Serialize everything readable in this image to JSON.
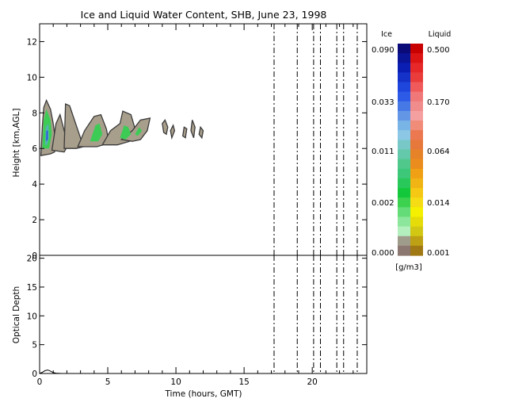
{
  "title": "Ice and Liquid Water Content, SHB, June 23, 1998",
  "colors": {
    "background": "#ffffff",
    "axis": "#000000",
    "cloud_gray": "#a89e8c",
    "cloud_outline": "#3a3a3a",
    "cloud_green": "#3ccc55",
    "cloud_teal": "#52b4b0",
    "cloud_blue": "#2a50e0"
  },
  "chart_data": [
    {
      "type": "heatmap",
      "panel": "top",
      "ylabel": "Height [km,AGL]",
      "xlim": [
        0,
        24
      ],
      "ylim": [
        0,
        13
      ],
      "yticks": [
        "0",
        "2",
        "4",
        "6",
        "8",
        "10",
        "12"
      ],
      "ytick_values": [
        0,
        2,
        4,
        6,
        8,
        10,
        12
      ],
      "dashed_time_lines": [
        17.2,
        18.9,
        20.1,
        20.6,
        21.8,
        22.3,
        23.3
      ],
      "cloud_regions": [
        {
          "kind": "body",
          "points": [
            [
              0.1,
              5.6
            ],
            [
              0.2,
              7.2
            ],
            [
              0.3,
              8.3
            ],
            [
              0.5,
              8.7
            ],
            [
              0.8,
              8.2
            ],
            [
              1.0,
              7.4
            ],
            [
              1.2,
              6.2
            ],
            [
              1.1,
              5.8
            ],
            [
              0.8,
              5.7
            ]
          ]
        },
        {
          "kind": "body",
          "points": [
            [
              0.9,
              5.9
            ],
            [
              1.2,
              7.4
            ],
            [
              1.5,
              7.9
            ],
            [
              1.8,
              7.0
            ],
            [
              2.1,
              6.2
            ],
            [
              1.8,
              5.8
            ]
          ]
        },
        {
          "kind": "body",
          "points": [
            [
              1.8,
              6.0
            ],
            [
              1.9,
              8.5
            ],
            [
              2.2,
              8.4
            ],
            [
              2.6,
              7.5
            ],
            [
              3.0,
              6.6
            ],
            [
              3.2,
              6.1
            ],
            [
              2.7,
              6.0
            ]
          ]
        },
        {
          "kind": "body",
          "points": [
            [
              2.8,
              6.1
            ],
            [
              3.3,
              7.0
            ],
            [
              4.0,
              7.8
            ],
            [
              4.5,
              7.9
            ],
            [
              4.9,
              7.1
            ],
            [
              5.1,
              6.3
            ],
            [
              4.2,
              6.1
            ]
          ]
        },
        {
          "kind": "body",
          "points": [
            [
              4.6,
              6.2
            ],
            [
              5.2,
              7.0
            ],
            [
              5.9,
              7.4
            ],
            [
              6.1,
              8.1
            ],
            [
              6.7,
              7.9
            ],
            [
              7.0,
              7.1
            ],
            [
              6.6,
              6.4
            ],
            [
              5.7,
              6.2
            ]
          ]
        },
        {
          "kind": "body",
          "points": [
            [
              6.0,
              6.5
            ],
            [
              6.8,
              7.0
            ],
            [
              7.4,
              7.6
            ],
            [
              8.1,
              7.7
            ],
            [
              7.9,
              7.0
            ],
            [
              7.4,
              6.5
            ],
            [
              6.8,
              6.4
            ]
          ]
        },
        {
          "kind": "core",
          "fill": "cloud_green",
          "points": [
            [
              0.2,
              6.0
            ],
            [
              0.3,
              7.6
            ],
            [
              0.5,
              8.2
            ],
            [
              0.8,
              7.6
            ],
            [
              0.9,
              6.8
            ],
            [
              0.7,
              6.0
            ]
          ]
        },
        {
          "kind": "core",
          "fill": "cloud_teal",
          "points": [
            [
              0.4,
              6.2
            ],
            [
              0.45,
              7.2
            ],
            [
              0.65,
              7.4
            ],
            [
              0.7,
              6.6
            ],
            [
              0.55,
              6.2
            ]
          ]
        },
        {
          "kind": "core",
          "fill": "cloud_blue",
          "points": [
            [
              0.48,
              6.4
            ],
            [
              0.5,
              7.0
            ],
            [
              0.6,
              7.0
            ],
            [
              0.6,
              6.5
            ]
          ]
        },
        {
          "kind": "core",
          "fill": "cloud_green",
          "points": [
            [
              3.7,
              6.4
            ],
            [
              4.1,
              7.3
            ],
            [
              4.4,
              7.4
            ],
            [
              4.6,
              6.8
            ],
            [
              4.3,
              6.4
            ]
          ]
        },
        {
          "kind": "core",
          "fill": "cloud_green",
          "points": [
            [
              5.9,
              6.6
            ],
            [
              6.2,
              7.3
            ],
            [
              6.5,
              7.2
            ],
            [
              6.7,
              6.8
            ],
            [
              6.3,
              6.5
            ]
          ]
        },
        {
          "kind": "core",
          "fill": "cloud_green",
          "points": [
            [
              7.0,
              6.8
            ],
            [
              7.3,
              7.2
            ],
            [
              7.5,
              7.0
            ],
            [
              7.2,
              6.7
            ]
          ]
        },
        {
          "kind": "body",
          "points": [
            [
              9.0,
              7.4
            ],
            [
              9.2,
              7.6
            ],
            [
              9.4,
              7.2
            ],
            [
              9.3,
              6.8
            ],
            [
              9.1,
              6.9
            ]
          ]
        },
        {
          "kind": "body",
          "points": [
            [
              9.6,
              7.0
            ],
            [
              9.8,
              7.3
            ],
            [
              9.9,
              7.0
            ],
            [
              9.7,
              6.6
            ]
          ]
        },
        {
          "kind": "body",
          "points": [
            [
              10.5,
              6.7
            ],
            [
              10.6,
              7.2
            ],
            [
              10.8,
              7.1
            ],
            [
              10.7,
              6.6
            ]
          ]
        },
        {
          "kind": "body",
          "points": [
            [
              11.1,
              7.0
            ],
            [
              11.2,
              7.6
            ],
            [
              11.4,
              7.2
            ],
            [
              11.3,
              6.6
            ]
          ]
        },
        {
          "kind": "body",
          "points": [
            [
              11.7,
              6.8
            ],
            [
              11.8,
              7.2
            ],
            [
              12.0,
              7.0
            ],
            [
              11.9,
              6.6
            ]
          ]
        }
      ]
    },
    {
      "type": "line",
      "panel": "bottom",
      "xlabel": "Time (hours, GMT)",
      "ylabel": "Optical Depth",
      "xlim": [
        0,
        24
      ],
      "ylim": [
        0,
        20.5
      ],
      "xticks": [
        "0",
        "5",
        "10",
        "15",
        "20"
      ],
      "xtick_values": [
        0,
        5,
        10,
        15,
        20
      ],
      "yticks": [
        "0",
        "5",
        "10",
        "15",
        "20"
      ],
      "ytick_values": [
        0,
        5,
        10,
        15,
        20
      ],
      "dashed_time_lines": [
        17.2,
        18.9,
        20.1,
        20.6,
        21.8,
        22.3,
        23.3
      ],
      "series": [
        {
          "x": [
            0,
            0.2,
            0.4,
            0.6,
            0.8,
            1.0,
            1.2,
            1.6,
            2.0,
            24
          ],
          "y": [
            0,
            0.2,
            0.5,
            0.6,
            0.4,
            0.15,
            0.05,
            0,
            0,
            0
          ]
        }
      ]
    },
    {
      "type": "table",
      "panel": "legend",
      "headers": [
        "Ice",
        "Liquid"
      ],
      "ice_labels": [
        "0.090",
        "0.033",
        "0.011",
        "0.002",
        "0.000"
      ],
      "liquid_labels": [
        "0.500",
        "0.170",
        "0.064",
        "0.014",
        "0.001"
      ],
      "units": "[g/m3]",
      "ice_colors": [
        "#0a0a78",
        "#0a1496",
        "#0a1eb4",
        "#1432c8",
        "#1e46dc",
        "#2d5ae6",
        "#4678e6",
        "#6496e6",
        "#78b4e6",
        "#8cc8e6",
        "#78c8c8",
        "#64c8aa",
        "#50c88c",
        "#3cc878",
        "#28c85a",
        "#14c83c",
        "#3cd250",
        "#64dc78",
        "#8ce69b",
        "#b4f0be",
        "#a09c8c",
        "#8c7870"
      ],
      "liquid_colors": [
        "#c80000",
        "#dc1414",
        "#e62828",
        "#eb3c3c",
        "#f05a5a",
        "#f07878",
        "#f08c8c",
        "#f5a0a0",
        "#f08c78",
        "#eb7850",
        "#e6783c",
        "#e68228",
        "#eb8c1e",
        "#f0a014",
        "#f0b414",
        "#f5c814",
        "#f5dc14",
        "#f5f000",
        "#e6dc0a",
        "#d2c814",
        "#bea014",
        "#a07814"
      ]
    }
  ]
}
